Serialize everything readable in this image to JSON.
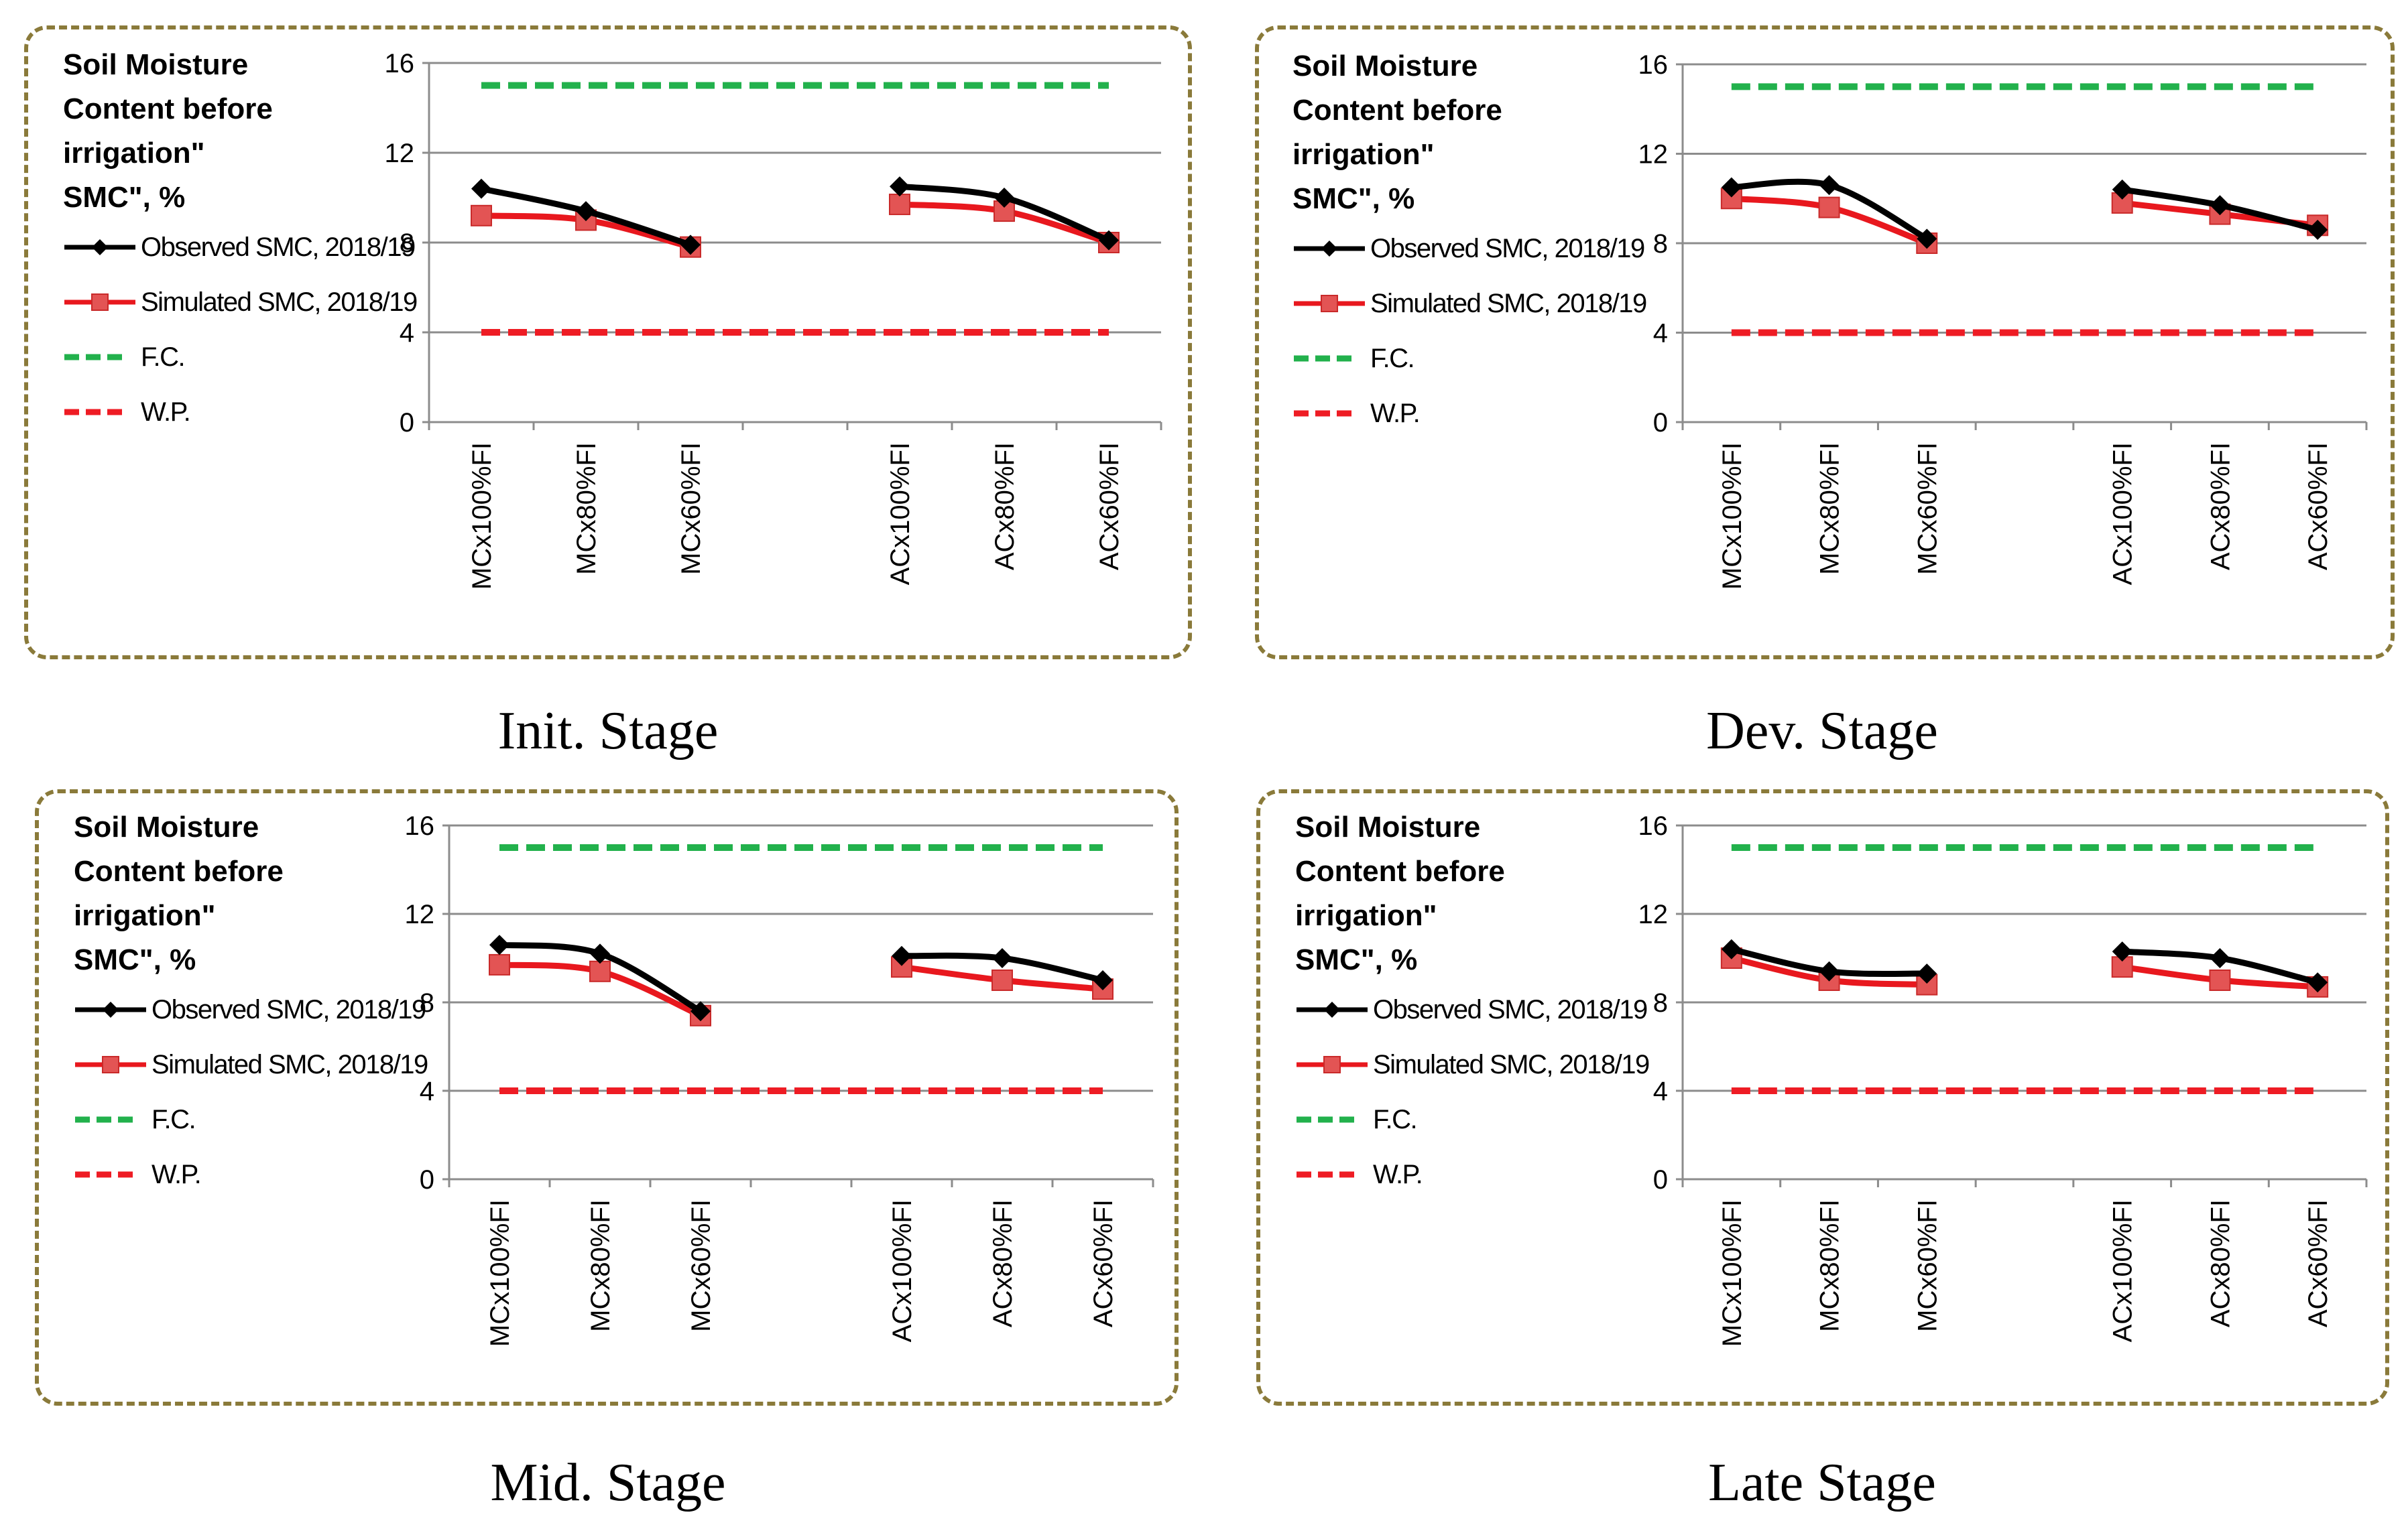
{
  "chart_data": [
    {
      "type": "line",
      "title": "Init. Stage",
      "ylabel": "Soil Moisture Content before irrigation\" SMC\", %",
      "ylabel_lines": [
        "Soil Moisture",
        "Content before",
        "irrigation\"",
        "SMC\", %"
      ],
      "categories": [
        "MCx100%FI",
        "MCx80%FI",
        "MCx60%FI",
        "",
        "ACx100%FI",
        "ACx80%FI",
        "ACx60%FI"
      ],
      "yticks": [
        "0",
        "4",
        "8",
        "12",
        "16"
      ],
      "ylim": [
        0,
        16
      ],
      "series": [
        {
          "name": "Observed SMC, 2018/19",
          "color": "#000000",
          "marker": "diamond",
          "values": [
            10.4,
            9.4,
            7.9,
            null,
            10.5,
            10.0,
            8.1
          ]
        },
        {
          "name": "Simulated SMC, 2018/19",
          "color": "#e8181e",
          "marker": "square",
          "values": [
            9.2,
            9.0,
            7.8,
            null,
            9.7,
            9.4,
            8.0
          ]
        },
        {
          "name": "F.C.",
          "color": "#22b14c",
          "dash": true,
          "values": [
            15,
            15,
            15,
            15,
            15,
            15,
            15
          ]
        },
        {
          "name": "W.P.",
          "color": "#ee1c24",
          "dash": true,
          "values": [
            4,
            4,
            4,
            4,
            4,
            4,
            4
          ]
        }
      ]
    },
    {
      "type": "line",
      "title": "Dev. Stage",
      "ylabel": "Soil Moisture Content before irrigation\" SMC\", %",
      "ylabel_lines": [
        "Soil Moisture",
        "Content before",
        "irrigation\"",
        "SMC\", %"
      ],
      "categories": [
        "MCx100%FI",
        "MCx80%FI",
        "MCx60%FI",
        "",
        "ACx100%FI",
        "ACx80%FI",
        "ACx60%FI"
      ],
      "yticks": [
        "0",
        "4",
        "8",
        "12",
        "16"
      ],
      "ylim": [
        0,
        16
      ],
      "series": [
        {
          "name": "Observed SMC, 2018/19",
          "color": "#000000",
          "marker": "diamond",
          "values": [
            10.5,
            10.6,
            8.2,
            null,
            10.4,
            9.7,
            8.6
          ]
        },
        {
          "name": "Simulated SMC, 2018/19",
          "color": "#e8181e",
          "marker": "square",
          "values": [
            10.0,
            9.6,
            8.0,
            null,
            9.8,
            9.3,
            8.8
          ]
        },
        {
          "name": "F.C.",
          "color": "#22b14c",
          "dash": true,
          "values": [
            15,
            15,
            15,
            15,
            15,
            15,
            15
          ]
        },
        {
          "name": "W.P.",
          "color": "#ee1c24",
          "dash": true,
          "values": [
            4,
            4,
            4,
            4,
            4,
            4,
            4
          ]
        }
      ]
    },
    {
      "type": "line",
      "title": "Mid. Stage",
      "ylabel": "Soil Moisture Content before irrigation\" SMC\", %",
      "ylabel_lines": [
        "Soil Moisture",
        "Content before",
        "irrigation\"",
        "SMC\", %"
      ],
      "categories": [
        "MCx100%FI",
        "MCx80%FI",
        "MCx60%FI",
        "",
        "ACx100%FI",
        "ACx80%FI",
        "ACx60%FI"
      ],
      "yticks": [
        "0",
        "4",
        "8",
        "12",
        "16"
      ],
      "ylim": [
        0,
        16
      ],
      "series": [
        {
          "name": "Observed SMC, 2018/19",
          "color": "#000000",
          "marker": "diamond",
          "values": [
            10.6,
            10.2,
            7.6,
            null,
            10.1,
            10.0,
            9.0
          ]
        },
        {
          "name": "Simulated SMC, 2018/19",
          "color": "#e8181e",
          "marker": "square",
          "values": [
            9.7,
            9.4,
            7.4,
            null,
            9.6,
            9.0,
            8.6
          ]
        },
        {
          "name": "F.C.",
          "color": "#22b14c",
          "dash": true,
          "values": [
            15,
            15,
            15,
            15,
            15,
            15,
            15
          ]
        },
        {
          "name": "W.P.",
          "color": "#ee1c24",
          "dash": true,
          "values": [
            4,
            4,
            4,
            4,
            4,
            4,
            4
          ]
        }
      ]
    },
    {
      "type": "line",
      "title": "Late Stage",
      "ylabel": "Soil Moisture Content before irrigation\" SMC\", %",
      "ylabel_lines": [
        "Soil Moisture",
        "Content before",
        "irrigation\"",
        "SMC\", %"
      ],
      "categories": [
        "MCx100%FI",
        "MCx80%FI",
        "MCx60%FI",
        "",
        "ACx100%FI",
        "ACx80%FI",
        "ACx60%FI"
      ],
      "yticks": [
        "0",
        "4",
        "8",
        "12",
        "16"
      ],
      "ylim": [
        0,
        16
      ],
      "series": [
        {
          "name": "Observed SMC, 2018/19",
          "color": "#000000",
          "marker": "diamond",
          "values": [
            10.4,
            9.4,
            9.3,
            null,
            10.3,
            10.0,
            8.9
          ]
        },
        {
          "name": "Simulated SMC, 2018/19",
          "color": "#e8181e",
          "marker": "square",
          "values": [
            10.0,
            9.0,
            8.8,
            null,
            9.6,
            9.0,
            8.7
          ]
        },
        {
          "name": "F.C.",
          "color": "#22b14c",
          "dash": true,
          "values": [
            15,
            15,
            15,
            15,
            15,
            15,
            15
          ]
        },
        {
          "name": "W.P.",
          "color": "#ee1c24",
          "dash": true,
          "values": [
            4,
            4,
            4,
            4,
            4,
            4,
            4
          ]
        }
      ]
    }
  ]
}
